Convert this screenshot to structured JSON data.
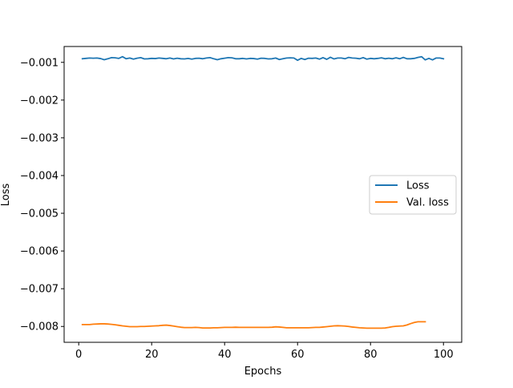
{
  "chart_data": {
    "type": "line",
    "xlabel": "Epochs",
    "ylabel": "Loss",
    "xlim": [
      -4.0,
      105.0
    ],
    "ylim": [
      -0.00842,
      -0.00058
    ],
    "xticks": [
      0,
      20,
      40,
      60,
      80,
      100
    ],
    "xtick_labels": [
      "0",
      "20",
      "40",
      "60",
      "80",
      "100"
    ],
    "yticks": [
      -0.001,
      -0.002,
      -0.003,
      -0.004,
      -0.005,
      -0.006,
      -0.007,
      -0.008
    ],
    "ytick_labels": [
      "−0.001",
      "−0.002",
      "−0.003",
      "−0.004",
      "−0.005",
      "−0.006",
      "−0.007",
      "−0.008"
    ],
    "grid": false,
    "legend_position": "center-right",
    "series": [
      {
        "name": "Loss",
        "color": "#1f77b4",
        "x_start": 1,
        "x_step": 1,
        "values": [
          -0.000905,
          -0.000895,
          -0.000885,
          -0.00089,
          -0.000885,
          -0.0009,
          -0.00093,
          -0.000905,
          -0.000875,
          -0.00088,
          -0.000895,
          -0.00085,
          -0.000905,
          -0.000885,
          -0.000915,
          -0.00089,
          -0.000875,
          -0.00091,
          -0.000905,
          -0.000895,
          -0.0009,
          -0.000885,
          -0.000895,
          -0.000905,
          -0.000885,
          -0.00091,
          -0.00089,
          -0.000905,
          -0.00091,
          -0.000895,
          -0.000915,
          -0.000895,
          -0.00089,
          -0.000905,
          -0.000885,
          -0.000875,
          -0.000905,
          -0.00093,
          -0.000905,
          -0.00089,
          -0.000875,
          -0.00088,
          -0.000905,
          -0.000905,
          -0.000895,
          -0.00091,
          -0.000895,
          -0.0009,
          -0.000915,
          -0.00089,
          -0.000895,
          -0.00091,
          -0.000905,
          -0.000885,
          -0.000925,
          -0.000905,
          -0.000885,
          -0.00088,
          -0.000885,
          -0.000945,
          -0.000895,
          -0.000925,
          -0.00089,
          -0.000895,
          -0.000885,
          -0.000915,
          -0.000875,
          -0.00092,
          -0.000865,
          -0.00091,
          -0.000885,
          -0.000885,
          -0.000905,
          -0.00087,
          -0.000885,
          -0.00089,
          -0.000905,
          -0.000875,
          -0.000915,
          -0.000895,
          -0.000905,
          -0.000895,
          -0.00088,
          -0.000905,
          -0.00089,
          -0.000905,
          -0.00088,
          -0.000905,
          -0.00087,
          -0.000905,
          -0.000905,
          -0.000895,
          -0.00087,
          -0.00085,
          -0.000935,
          -0.000895,
          -0.000935,
          -0.000885,
          -0.000885,
          -0.000905
        ]
      },
      {
        "name": "Val. loss",
        "color": "#ff7f0e",
        "x_start": 1,
        "x_step": 1,
        "values": [
          -0.00795,
          -0.00795,
          -0.00795,
          -0.00794,
          -0.007935,
          -0.00793,
          -0.00793,
          -0.007935,
          -0.007945,
          -0.007955,
          -0.00797,
          -0.007985,
          -0.007995,
          -0.008005,
          -0.008005,
          -0.008005,
          -0.008,
          -0.008,
          -0.007995,
          -0.00799,
          -0.007985,
          -0.00798,
          -0.00797,
          -0.007965,
          -0.007975,
          -0.00799,
          -0.008005,
          -0.00802,
          -0.00803,
          -0.00803,
          -0.00803,
          -0.008025,
          -0.00803,
          -0.00804,
          -0.00804,
          -0.00804,
          -0.008035,
          -0.008035,
          -0.00803,
          -0.008025,
          -0.008025,
          -0.008025,
          -0.00802,
          -0.008025,
          -0.008025,
          -0.008025,
          -0.008025,
          -0.008025,
          -0.008025,
          -0.008025,
          -0.008025,
          -0.008025,
          -0.00802,
          -0.00801,
          -0.008015,
          -0.008025,
          -0.008035,
          -0.008035,
          -0.008035,
          -0.008035,
          -0.008035,
          -0.008035,
          -0.008035,
          -0.00803,
          -0.008025,
          -0.008025,
          -0.008015,
          -0.008005,
          -0.007995,
          -0.007985,
          -0.00798,
          -0.007985,
          -0.00799,
          -0.008,
          -0.008015,
          -0.008025,
          -0.008035,
          -0.00804,
          -0.008045,
          -0.008045,
          -0.008045,
          -0.008045,
          -0.008045,
          -0.00804,
          -0.008025,
          -0.008005,
          -0.007995,
          -0.00799,
          -0.007985,
          -0.00796,
          -0.007925,
          -0.007895,
          -0.007875,
          -0.007875,
          -0.007875
        ]
      }
    ]
  }
}
